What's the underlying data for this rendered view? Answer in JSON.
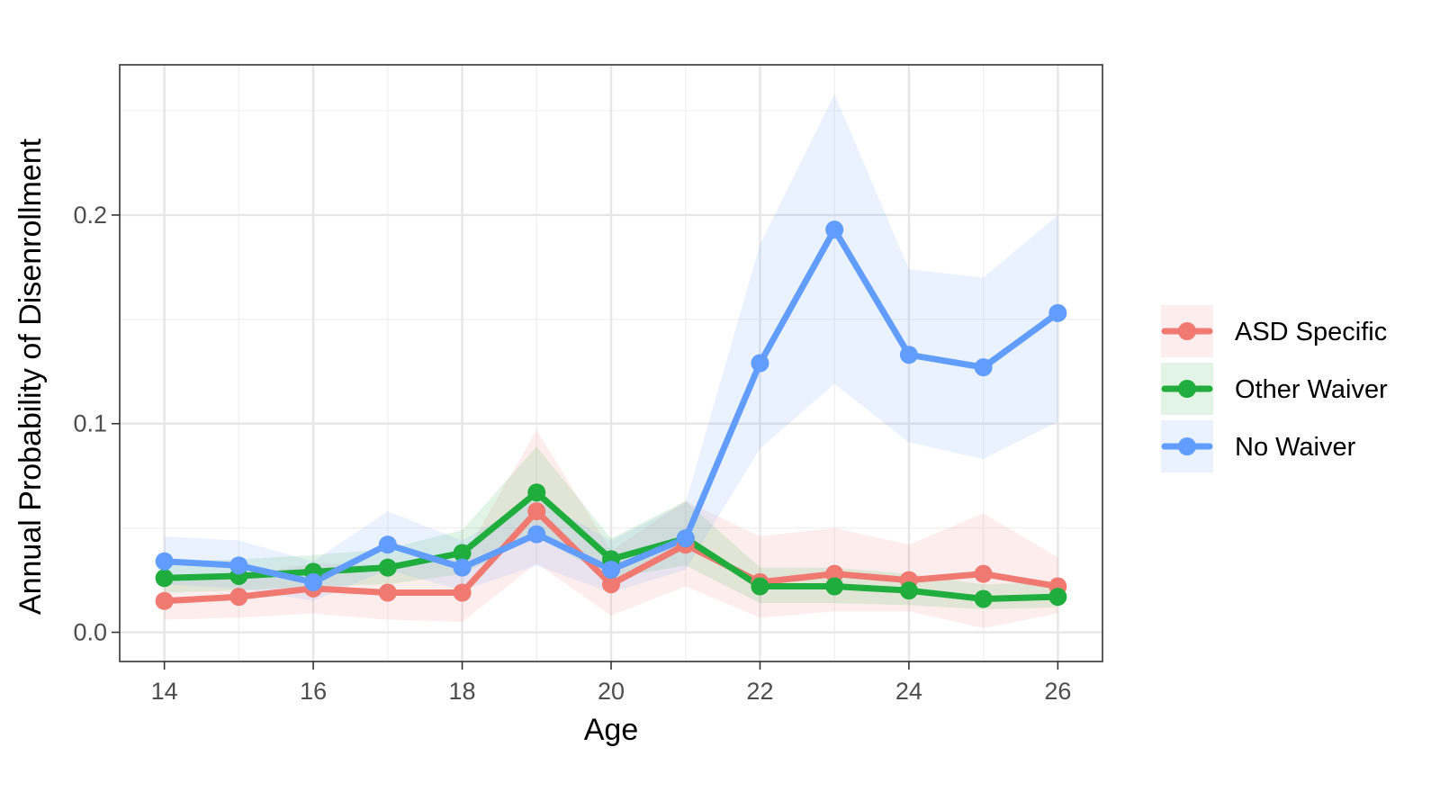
{
  "chart_data": {
    "type": "line",
    "title": "",
    "xlabel": "Age",
    "ylabel": "Annual Probability of Disenrollment",
    "xlim": [
      13.4,
      26.6
    ],
    "ylim": [
      -0.014,
      0.272
    ],
    "x_ticks": [
      14,
      16,
      18,
      20,
      22,
      24,
      26
    ],
    "y_ticks": [
      0.0,
      0.1,
      0.2
    ],
    "y_tick_labels": [
      "0.0",
      "0.1",
      "0.2"
    ],
    "grid": true,
    "legend_position": "right",
    "x": [
      14,
      15,
      16,
      17,
      18,
      19,
      20,
      21,
      22,
      23,
      24,
      25,
      26
    ],
    "series": [
      {
        "name": "ASD Specific",
        "color": "#F07A72",
        "values": [
          0.015,
          0.017,
          0.021,
          0.019,
          0.019,
          0.058,
          0.023,
          0.042,
          0.024,
          0.028,
          0.025,
          0.028,
          0.022
        ],
        "ci_lower": [
          0.006,
          0.007,
          0.009,
          0.006,
          0.005,
          0.033,
          0.008,
          0.022,
          0.007,
          0.01,
          0.01,
          0.002,
          0.009
        ],
        "ci_upper": [
          0.025,
          0.027,
          0.033,
          0.032,
          0.035,
          0.097,
          0.039,
          0.063,
          0.046,
          0.05,
          0.042,
          0.057,
          0.036
        ]
      },
      {
        "name": "Other Waiver",
        "color": "#1FAD3D",
        "values": [
          0.026,
          0.027,
          0.029,
          0.031,
          0.038,
          0.067,
          0.035,
          0.045,
          0.022,
          0.022,
          0.02,
          0.016,
          0.017
        ],
        "ci_lower": [
          0.019,
          0.02,
          0.022,
          0.023,
          0.028,
          0.046,
          0.026,
          0.032,
          0.014,
          0.014,
          0.013,
          0.011,
          0.012
        ],
        "ci_upper": [
          0.034,
          0.035,
          0.037,
          0.04,
          0.049,
          0.089,
          0.045,
          0.063,
          0.031,
          0.031,
          0.028,
          0.023,
          0.024
        ]
      },
      {
        "name": "No Waiver",
        "color": "#619CFF",
        "values": [
          0.034,
          0.032,
          0.024,
          0.042,
          0.031,
          0.047,
          0.03,
          0.045,
          0.129,
          0.193,
          0.133,
          0.127,
          0.153
        ],
        "ci_lower": [
          0.023,
          0.021,
          0.015,
          0.03,
          0.02,
          0.032,
          0.019,
          0.03,
          0.088,
          0.119,
          0.091,
          0.083,
          0.101
        ],
        "ci_upper": [
          0.046,
          0.044,
          0.034,
          0.058,
          0.044,
          0.064,
          0.044,
          0.062,
          0.186,
          0.258,
          0.174,
          0.17,
          0.2
        ]
      }
    ]
  }
}
